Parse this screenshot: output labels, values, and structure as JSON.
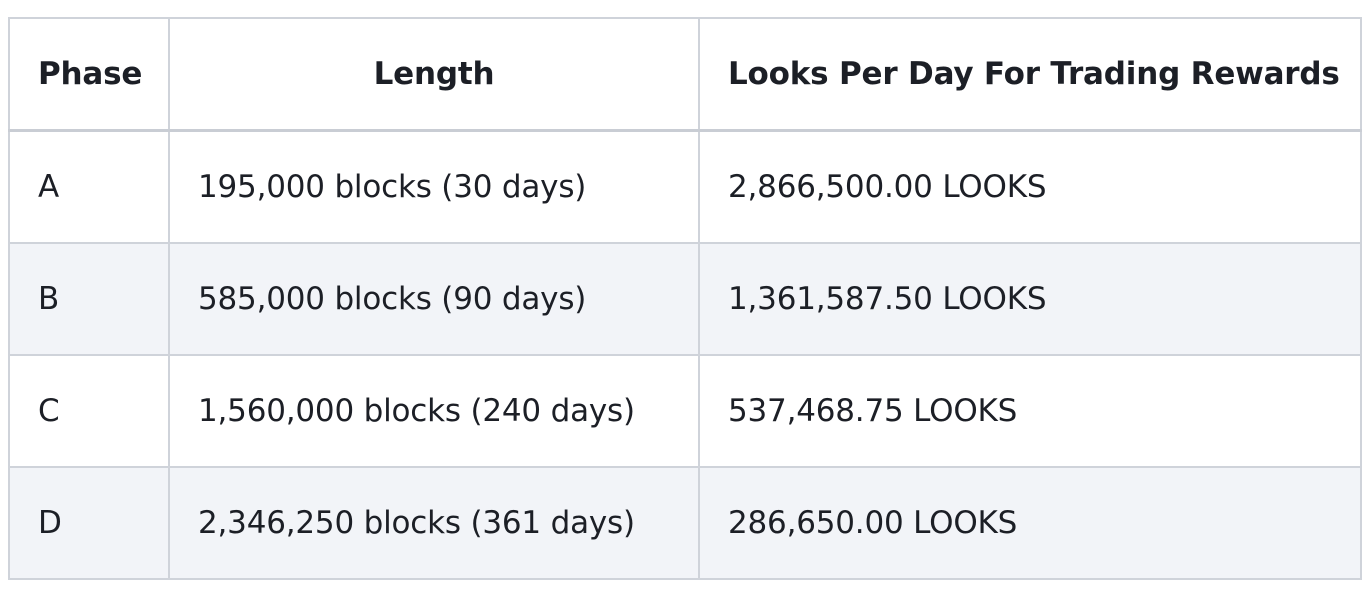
{
  "table": {
    "headers": [
      "Phase",
      "Length",
      "Looks Per Day For Trading Rewards"
    ],
    "rows": [
      [
        "A",
        "195,000 blocks (30 days)",
        "2,866,500.00 LOOKS"
      ],
      [
        "B",
        "585,000 blocks (90 days)",
        "1,361,587.50 LOOKS"
      ],
      [
        "C",
        "1,560,000 blocks (240 days)",
        "537,468.75 LOOKS"
      ],
      [
        "D",
        "2,346,250 blocks (361 days)",
        "286,650.00 LOOKS"
      ]
    ]
  },
  "colors": {
    "border": "#cfd3da",
    "stripe": "#f2f4f8",
    "text": "#1c1f26"
  }
}
